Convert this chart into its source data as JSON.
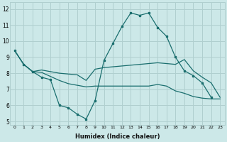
{
  "bg_color": "#cce8e8",
  "grid_color": "#b0cfcf",
  "line_color": "#1a6e6e",
  "xlabel": "Humidex (Indice chaleur)",
  "xlim": [
    -0.5,
    23.5
  ],
  "ylim": [
    4.8,
    12.4
  ],
  "yticks": [
    5,
    6,
    7,
    8,
    9,
    10,
    11,
    12
  ],
  "xticks": [
    0,
    1,
    2,
    3,
    4,
    5,
    6,
    7,
    8,
    9,
    10,
    11,
    12,
    13,
    14,
    15,
    16,
    17,
    18,
    19,
    20,
    21,
    22,
    23
  ],
  "line1_x": [
    0,
    1,
    2,
    3,
    4,
    5,
    6,
    7,
    8,
    9,
    10,
    11,
    12,
    13,
    14,
    15,
    16,
    17,
    18,
    19,
    20,
    21,
    22,
    23
  ],
  "line1_y": [
    9.4,
    8.55,
    8.1,
    7.75,
    7.6,
    6.0,
    5.85,
    5.45,
    5.15,
    6.3,
    8.8,
    9.85,
    10.9,
    11.75,
    11.6,
    11.75,
    10.85,
    10.3,
    9.0,
    8.15,
    7.85,
    7.4,
    6.5,
    null
  ],
  "line2_x": [
    0,
    1,
    2,
    3,
    4,
    5,
    6,
    7,
    8,
    9,
    10,
    11,
    12,
    13,
    14,
    15,
    16,
    17,
    18,
    19,
    20,
    21,
    22,
    23
  ],
  "line2_y": [
    9.4,
    8.55,
    8.1,
    8.2,
    8.1,
    8.0,
    7.95,
    7.9,
    7.55,
    8.25,
    8.35,
    8.4,
    8.45,
    8.5,
    8.55,
    8.6,
    8.65,
    8.6,
    8.55,
    8.85,
    8.15,
    7.75,
    7.4,
    6.5
  ],
  "line3_x": [
    0,
    1,
    2,
    3,
    4,
    5,
    6,
    7,
    8,
    9,
    10,
    11,
    12,
    13,
    14,
    15,
    16,
    17,
    18,
    19,
    20,
    21,
    22,
    23
  ],
  "line3_y": [
    9.4,
    8.55,
    8.1,
    8.05,
    7.8,
    7.55,
    7.35,
    7.25,
    7.15,
    7.2,
    7.2,
    7.2,
    7.2,
    7.2,
    7.2,
    7.2,
    7.3,
    7.2,
    6.9,
    6.75,
    6.55,
    6.45,
    6.4,
    6.4
  ]
}
